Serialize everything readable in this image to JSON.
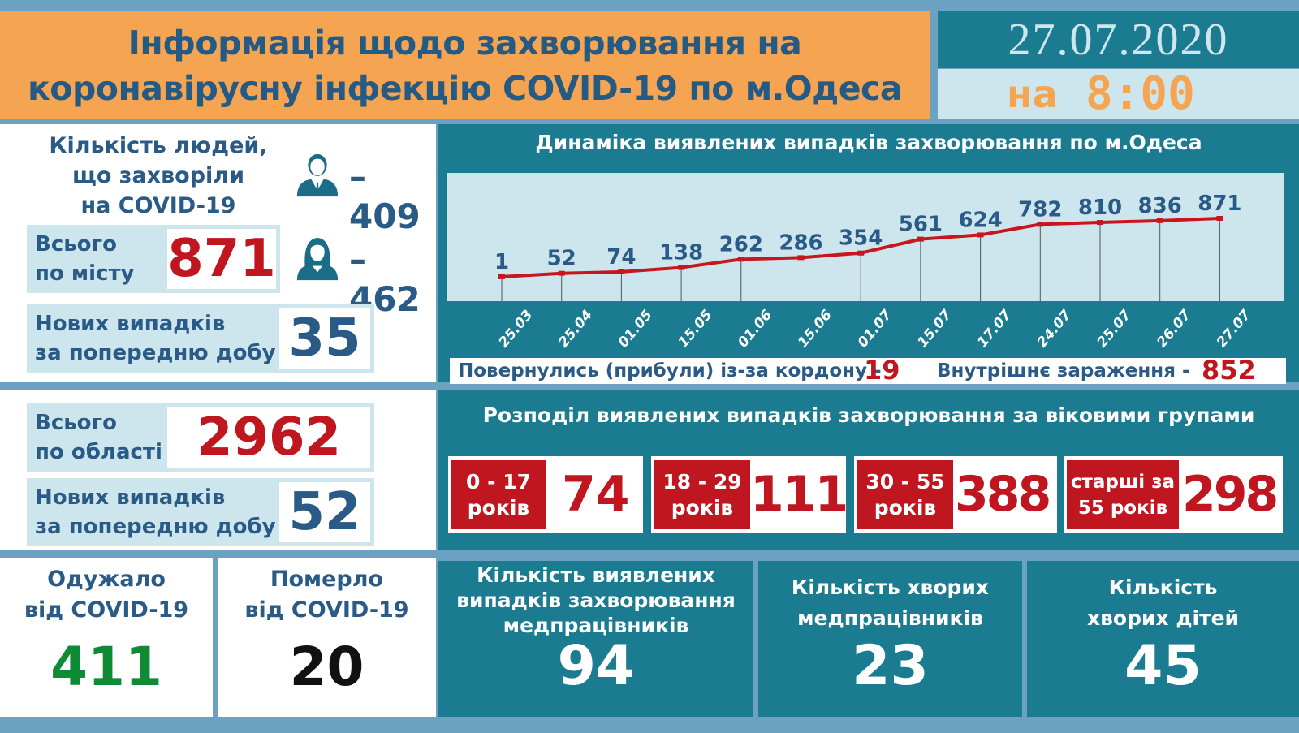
{
  "header": {
    "title_line1": "Інформація щодо захворювання на",
    "title_line2": "коронавірусну інфекцію COVID-19 по м.Одеса",
    "date": "27.07.2020",
    "time_prefix": "на",
    "time": "8:00"
  },
  "city": {
    "question": [
      "Кількість людей,",
      "що захворіли",
      "на COVID-19"
    ],
    "total_label": [
      "Всього",
      "по місту"
    ],
    "total_value": "871",
    "new_label": [
      "Нових випадків",
      "за попередню добу"
    ],
    "new_value": "35",
    "male": {
      "icon": "male-person-icon",
      "value": "–409"
    },
    "female": {
      "icon": "female-person-icon",
      "value": "–462"
    }
  },
  "region": {
    "total_label": [
      "Всього",
      "по області"
    ],
    "total_value": "2962",
    "new_label": [
      "Нових випадків",
      "за попередню добу"
    ],
    "new_value": "52"
  },
  "outcomes": {
    "recovered": {
      "label": [
        "Одужало",
        "від COVID-19"
      ],
      "value": "411"
    },
    "died": {
      "label": [
        "Померло",
        "від COVID-19"
      ],
      "value": "20"
    }
  },
  "chart_data": {
    "type": "line",
    "title": "Динаміка виявлених випадків захворювання по м.Одеса",
    "categories": [
      "25.03",
      "25.04",
      "01.05",
      "15.05",
      "01.06",
      "15.06",
      "01.07",
      "15.07",
      "17.07",
      "24.07",
      "25.07",
      "26.07",
      "27.07"
    ],
    "values": [
      1,
      52,
      74,
      138,
      262,
      286,
      354,
      561,
      624,
      782,
      810,
      836,
      871
    ],
    "xlabel": "",
    "ylabel": "",
    "ylim": [
      0,
      900
    ],
    "grid": false,
    "line_color": "#c8161f",
    "data_labels": true
  },
  "chart_footer": {
    "imported_label": "Повернулись (прибули) із-за кордону -",
    "imported_value": "19",
    "local_label": "Внутрішнє зараження  -",
    "local_value": "852"
  },
  "age_groups": {
    "title": "Розподіл виявлених випадків захворювання за віковими групами",
    "items": [
      {
        "range": "0 - 17",
        "unit": "років",
        "value": "74"
      },
      {
        "range": "18 - 29",
        "unit": "років",
        "value": "111"
      },
      {
        "range": "30 - 55",
        "unit": "років",
        "value": "388"
      },
      {
        "range": "старші за",
        "unit": "55 років",
        "value": "298"
      }
    ]
  },
  "medical": {
    "detected_staff": {
      "label": [
        "Кількість виявлених",
        "випадків захворювання",
        "медпрацівників"
      ],
      "value": "94"
    },
    "sick_staff": {
      "label": [
        "Кількість хворих",
        "медпрацівників"
      ],
      "value": "23"
    },
    "sick_children": {
      "label": [
        "Кількість",
        "хворих дітей"
      ],
      "value": "45"
    }
  },
  "colors": {
    "orange": "#f5a552",
    "teal": "#1b7b91",
    "light_blue": "#cde5ed",
    "frame": "#6ba2c1",
    "navy_text": "#2a5a86",
    "red": "#c0161f",
    "green": "#0f8b35"
  }
}
